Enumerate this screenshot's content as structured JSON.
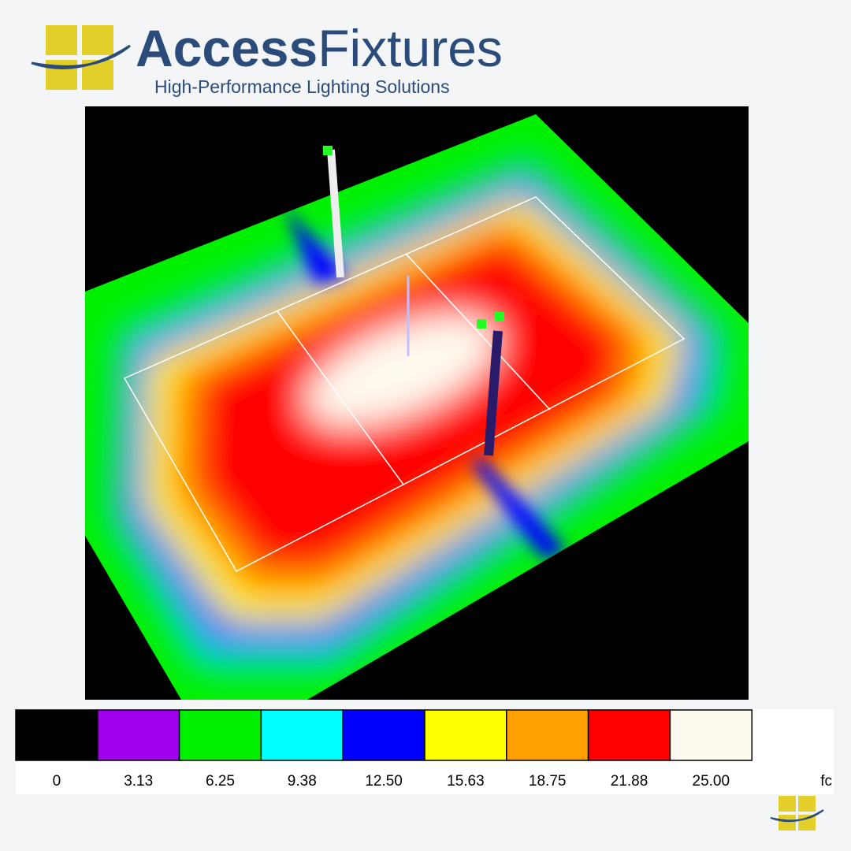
{
  "header": {
    "brand_first": "Access",
    "brand_second": "Fixtures",
    "tagline": "High-Performance Lighting Solutions"
  },
  "legend": {
    "colors": [
      "#000000",
      "#a000f0",
      "#00f000",
      "#00ffff",
      "#0000ff",
      "#ffff00",
      "#ffa000",
      "#ff0000",
      "#fffaf0"
    ],
    "labels": [
      "0",
      "3.13",
      "6.25",
      "9.38",
      "12.50",
      "15.63",
      "18.75",
      "21.88",
      "25.00"
    ],
    "unit": "fc"
  }
}
